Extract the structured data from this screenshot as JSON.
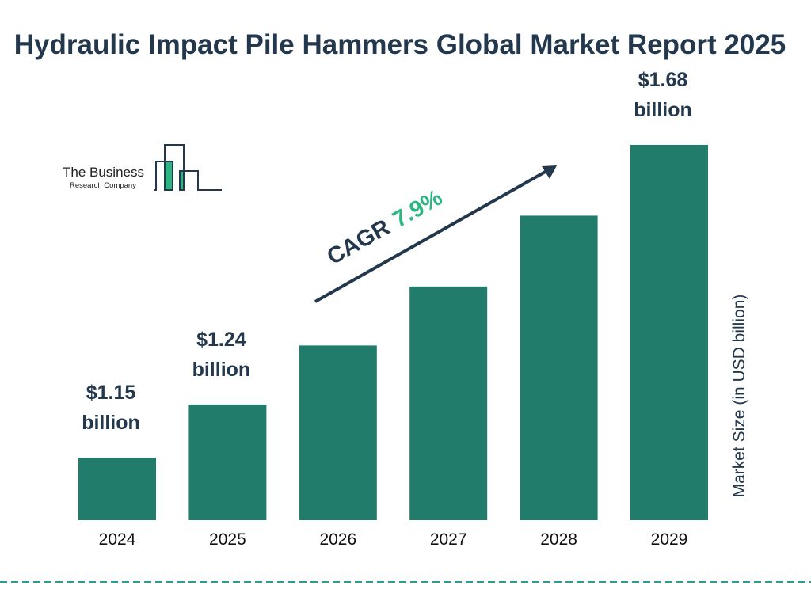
{
  "chart_data": {
    "type": "bar",
    "title": "Hydraulic Impact Pile Hammers Global Market Report 2025",
    "categories": [
      "2024",
      "2025",
      "2026",
      "2027",
      "2028",
      "2029"
    ],
    "values": [
      1.15,
      1.24,
      1.34,
      1.44,
      1.56,
      1.68
    ],
    "data_labels": [
      "$1.15",
      "$1.24",
      "",
      "",
      "",
      "$1.68"
    ],
    "data_label_unit": "billion",
    "ylabel": "Market Size (in USD billion)",
    "xlabel": "",
    "grid": false,
    "annotation": {
      "label": "CAGR",
      "value": "7.9%"
    },
    "colors": {
      "bar": "#217c6c",
      "text": "#23384d",
      "accent": "#2db581"
    }
  },
  "logo": {
    "line1": "The Business",
    "line2": "Research Company"
  }
}
